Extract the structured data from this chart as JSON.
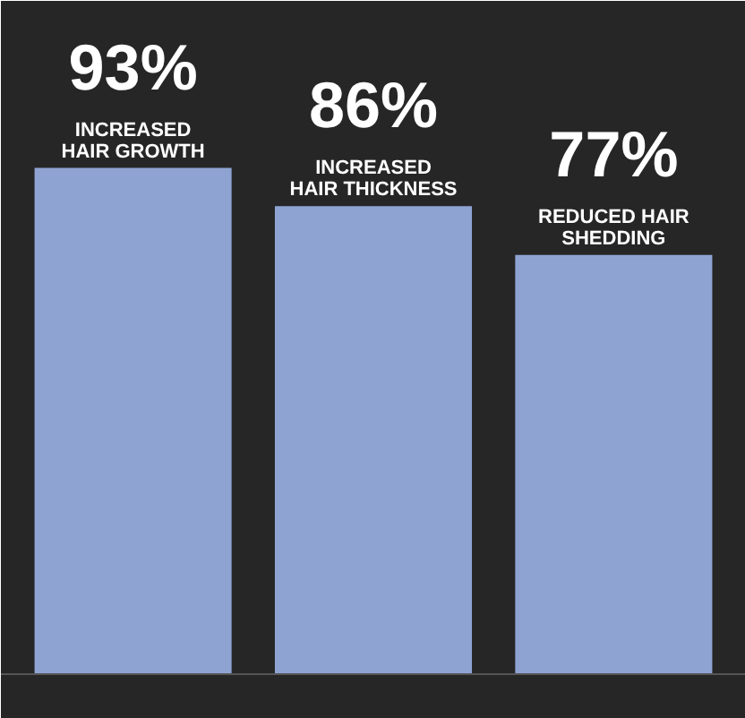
{
  "chart_data": {
    "type": "bar",
    "categories": [
      "INCREASED\nHAIR GROWTH",
      "INCREASED\nHAIR THICKNESS",
      "REDUCED HAIR\nSHEDDING"
    ],
    "values": [
      93,
      86,
      77
    ],
    "value_labels": [
      "93%",
      "86%",
      "77%"
    ],
    "color": "#8fa3d3"
  }
}
